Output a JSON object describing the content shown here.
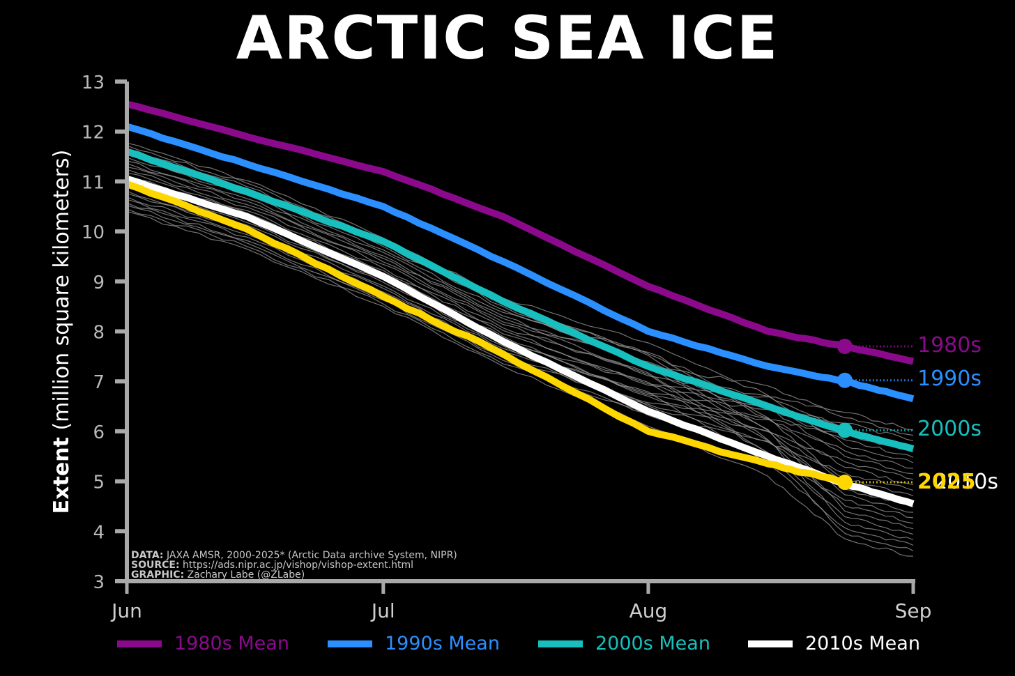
{
  "title": "ARCTIC SEA ICE",
  "y_axis": {
    "label_bold": "Extent",
    "label_rest": " (million square kilometers)",
    "ticks": [
      "13",
      "12",
      "11",
      "10",
      "9",
      "8",
      "7",
      "6",
      "5",
      "4",
      "3"
    ]
  },
  "x_axis": {
    "ticks": [
      "Jun",
      "Jul",
      "Aug",
      "Sep"
    ]
  },
  "credits": {
    "data_label": "DATA:",
    "data_text": " JAXA AMSR, 2000-2025* (Arctic Data archive System, NIPR)",
    "source_label": "SOURCE:",
    "source_text": " https://ads.nipr.ac.jp/vishop/vishop-extent.html",
    "graphic_label": "GRAPHIC:",
    "graphic_text": " Zachary Labe (@ZLabe)"
  },
  "end_labels": [
    {
      "text": "1980s",
      "color": "#8B0A8C"
    },
    {
      "text": "1990s",
      "color": "#2B8FFF"
    },
    {
      "text": "2000s",
      "color": "#17C0BE"
    },
    {
      "text": "2010s",
      "color": "#FFFFFF"
    },
    {
      "text": "2025",
      "color": "#FFD700"
    }
  ],
  "legend": [
    {
      "label": "1980s Mean",
      "color": "#8B0A8C"
    },
    {
      "label": "1990s Mean",
      "color": "#2B8FFF"
    },
    {
      "label": "2000s Mean",
      "color": "#17C0BE"
    },
    {
      "label": "2010s Mean",
      "color": "#FFFFFF"
    }
  ],
  "chart_data": {
    "type": "line",
    "title": "ARCTIC SEA ICE",
    "xlabel": "",
    "ylabel": "Extent (million square kilometers)",
    "ylim": [
      3,
      13
    ],
    "xlim": [
      "Jun 1",
      "Sep 1"
    ],
    "x_tick_labels": [
      "Jun",
      "Jul",
      "Aug",
      "Sep"
    ],
    "y_tick_labels": [
      3,
      4,
      5,
      6,
      7,
      8,
      9,
      10,
      11,
      12,
      13
    ],
    "grid": false,
    "legend_position": "bottom",
    "x": [
      "Jun 1",
      "Jun 15",
      "Jul 1",
      "Jul 15",
      "Aug 1",
      "Aug 15",
      "Aug 24",
      "Sep 1"
    ],
    "series": [
      {
        "name": "1980s Mean",
        "color": "#8B0A8C",
        "values": [
          12.55,
          11.9,
          11.2,
          10.3,
          8.9,
          8.0,
          7.7,
          7.4
        ]
      },
      {
        "name": "1990s Mean",
        "color": "#2B8FFF",
        "values": [
          12.1,
          11.35,
          10.5,
          9.4,
          8.0,
          7.3,
          7.0,
          6.65
        ]
      },
      {
        "name": "2000s Mean",
        "color": "#17C0BE",
        "values": [
          11.6,
          10.8,
          9.8,
          8.6,
          7.3,
          6.5,
          6.0,
          5.65
        ]
      },
      {
        "name": "2010s Mean",
        "color": "#FFFFFF",
        "values": [
          11.05,
          10.3,
          9.1,
          7.8,
          6.4,
          5.5,
          4.95,
          4.55
        ]
      },
      {
        "name": "2025",
        "color": "#FFD700",
        "values": [
          10.95,
          10.05,
          8.7,
          7.55,
          6.0,
          5.35,
          4.98,
          null
        ]
      }
    ],
    "markers": [
      {
        "series": "1980s Mean",
        "date": "Aug 24",
        "value": 7.7
      },
      {
        "series": "1990s Mean",
        "date": "Aug 24",
        "value": 7.02
      },
      {
        "series": "2000s Mean",
        "date": "Aug 24",
        "value": 6.02
      },
      {
        "series": "2025",
        "date": "Aug 24",
        "value": 4.98
      }
    ],
    "background_series": "individual years 2000-2024 (thin gray lines)",
    "annotations": [
      "DATA: JAXA AMSR, 2000-2025* (Arctic Data archive System, NIPR)",
      "SOURCE: https://ads.nipr.ac.jp/vishop/vishop-extent.html",
      "GRAPHIC: Zachary Labe (@ZLabe)"
    ]
  }
}
